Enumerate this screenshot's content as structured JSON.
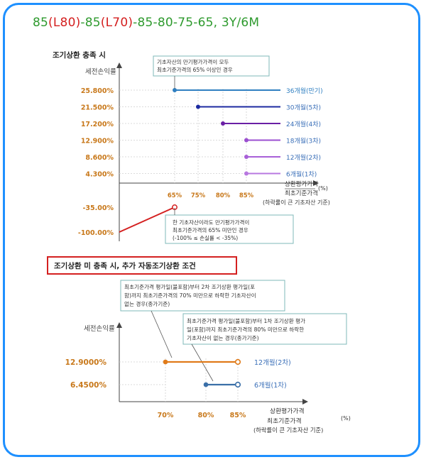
{
  "title": {
    "p1": "85",
    "p2": "(L80)",
    "p3": "-85",
    "p4": "(L70)",
    "p5": "-85-80-75-65, 3Y/6M"
  },
  "chart_data": [
    {
      "type": "line",
      "title": "조기상환 충족 시",
      "ylabel": "세전손익률",
      "xlabel": "상환평가가격",
      "xlabel2": "최초기준가격",
      "x_unit": "(%)",
      "xnote": "(하락률이 큰 기초자산 기준)",
      "x_ticks": [
        "65%",
        "75%",
        "80%",
        "85%"
      ],
      "y_ticks": [
        "25.800%",
        "21.500%",
        "17.200%",
        "12.900%",
        "8.600%",
        "4.300%",
        "-35.00%",
        "-100.00%"
      ],
      "series": [
        {
          "name": "36개월(만기)",
          "y": 25.8,
          "x_from": 65,
          "color": "#2f7fc1"
        },
        {
          "name": "30개월(5차)",
          "y": 21.5,
          "x_from": 75,
          "color": "#1c2aa0"
        },
        {
          "name": "24개월(4차)",
          "y": 17.2,
          "x_from": 80,
          "color": "#6a1fa5"
        },
        {
          "name": "18개월(3차)",
          "y": 12.9,
          "x_from": 85,
          "color": "#9b4fd0"
        },
        {
          "name": "12개월(2차)",
          "y": 8.6,
          "x_from": 85,
          "color": "#a860d8"
        },
        {
          "name": "6개월(1차)",
          "y": 4.3,
          "x_from": 85,
          "color": "#b878e0"
        }
      ],
      "loss_segment": {
        "from": [
          0,
          -100
        ],
        "to": [
          65,
          -35
        ],
        "color": "#d42020"
      },
      "annotations": [
        {
          "lines": [
            "기초자산의 만기평가가격이 모두",
            "최초기준가격의 65% 이상인 경우"
          ]
        },
        {
          "lines": [
            "한 기초자산이라도 만기평가가격이",
            "최초기준가격의 65% 미만인 경우",
            "(-100% ≤ 손실률 < -35%)"
          ]
        }
      ]
    },
    {
      "type": "line",
      "title": "조기상환 미 충족 시, 추가 자동조기상환 조건",
      "ylabel": "세전손익률",
      "xlabel": "상환평가가격",
      "xlabel2": "최초기준가격",
      "x_unit": "(%)",
      "xnote": "(하락률이 큰 기초자산 기준)",
      "x_ticks": [
        "70%",
        "80%",
        "85%"
      ],
      "y_ticks": [
        "12.9000%",
        "6.4500%"
      ],
      "series": [
        {
          "name": "12개월(2차)",
          "y": 12.9,
          "x_from": 70,
          "x_to": 85,
          "color": "#e07b1a"
        },
        {
          "name": "6개월(1차)",
          "y": 6.45,
          "x_from": 80,
          "x_to": 85,
          "color": "#3a6fa8"
        }
      ],
      "annotations": [
        {
          "lines": [
            "최초기준가격 평가일(불포함)부터 2차 조기상환 평가일(포",
            "함)까지 최초기준가격의 70% 미만으로 하락한 기초자산이",
            "없는 경우(종가기준)"
          ]
        },
        {
          "lines": [
            "최초기준가격 평가일(불포함)부터 1차 조기상환 평가",
            "일(포함)까지 최초기준가격의 80% 미만으로 하락한",
            "기초자산이 없는 경우(종가기준)"
          ]
        }
      ]
    }
  ]
}
